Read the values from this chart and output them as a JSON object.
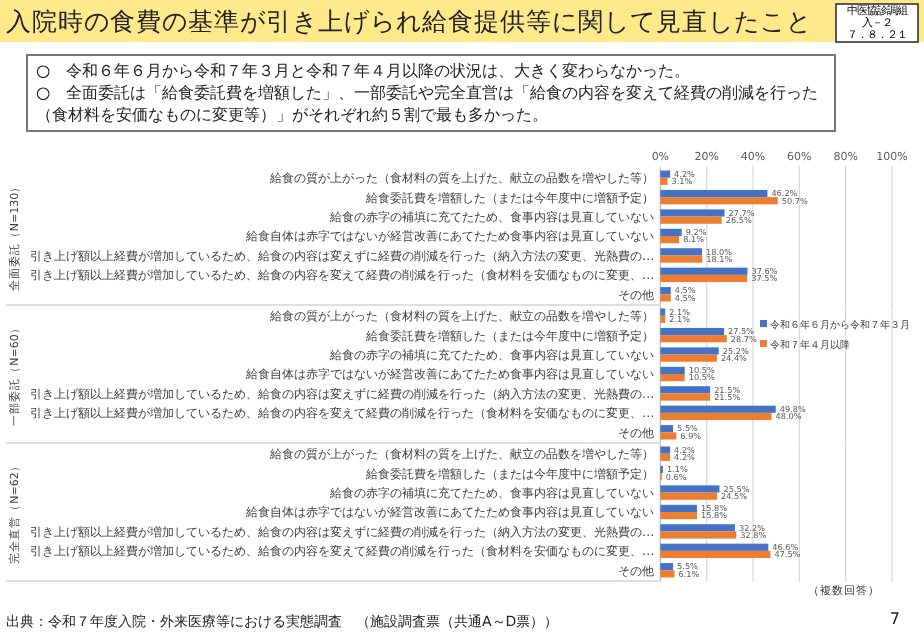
{
  "chart_data": [
    {
      "type": "bar",
      "orientation": "horizontal",
      "title": "入院時の食費の基準が引き上げられ給食提供等に関して見直したこと",
      "subtitle": "○　令和６年６月から令和７年３月と令和７年４月以降の状況は、大きく変わらなかった。\n○　全面委託は「給食委託費を増額した」、一部委託や完全直営は「給食の内容を変えて経費の削減を行った（食材料を安価なものに変更等）」がそれぞれ約５割で最も多かった。",
      "annotations": [
        "中医協診調組",
        "入－２",
        "７．８．２１"
      ],
      "ylabel": "全面委託（N=130）",
      "categories": [
        "給食の質が上がった（食材料の質を上げた、献立の品数を増やした等）",
        "給食委託費を増額した（または今年度中に増額予定）",
        "給食の赤字の補填に充てたため、食事内容は見直していない",
        "給食自体は赤字ではないが経営改善にあてたため食事内容は見直していない",
        "引き上げ額以上経費が増加しているため、給食の内容は変えずに経費の削減を行った（納入方法の変更、光熱費の…",
        "引き上げ額以上経費が増加しているため、給食の内容を変えて経費の削減を行った（食材料を安価なものに変更、…",
        "その他"
      ],
      "series": [
        {
          "color": "#4472c4",
          "values": [
            4.2,
            46.2,
            27.7,
            9.2,
            18.0,
            37.6,
            4.5
          ],
          "value_labels": [
            "4.2%",
            "46.2%",
            "27.7%",
            "9.2%",
            "18.0%",
            "37.6%",
            "4.5%"
          ]
        },
        {
          "color": "#ed7d31",
          "values": [
            3.1,
            50.7,
            26.5,
            8.1,
            18.1,
            37.5,
            4.5
          ],
          "value_labels": [
            "3.1%",
            "50.7%",
            "26.5%",
            "8.1%",
            "18.1%",
            "37.5%",
            "4.5%"
          ]
        }
      ],
      "xlim": [
        0,
        100
      ],
      "xticks": [
        {
          "value": 0,
          "label": "0%"
        },
        {
          "value": 20,
          "label": "20%"
        },
        {
          "value": 40,
          "label": "40%"
        },
        {
          "value": 60,
          "label": "60%"
        },
        {
          "value": 80,
          "label": "80%"
        },
        {
          "value": 100,
          "label": "100%"
        }
      ],
      "grid": "x"
    },
    {
      "type": "bar",
      "orientation": "horizontal",
      "ylabel": "一部委託（N=60）",
      "categories": [
        "給食の質が上がった（食材料の質を上げた、献立の品数を増やした等）",
        "給食委託費を増額した（または今年度中に増額予定）",
        "給食の赤字の補填に充てたため、食事内容は見直していない",
        "給食自体は赤字ではないが経営改善にあてたため食事内容は見直していない",
        "引き上げ額以上経費が増加しているため、給食の内容は変えずに経費の削減を行った（納入方法の変更、光熱費の…",
        "引き上げ額以上経費が増加しているため、給食の内容を変えて経費の削減を行った（食材料を安価なものに変更、…",
        "その他"
      ],
      "series": [
        {
          "name": "令和６年６月から令和７年３月",
          "color": "#4472c4",
          "values": [
            2.1,
            27.5,
            25.2,
            10.5,
            21.5,
            49.8,
            5.5
          ],
          "value_labels": [
            "2.1%",
            "27.5%",
            "25.2%",
            "10.5%",
            "21.5%",
            "49.8%",
            "5.5%"
          ]
        },
        {
          "name": "令和７年４月以降",
          "color": "#ed7d31",
          "values": [
            2.1,
            28.7,
            24.4,
            10.5,
            21.5,
            48.0,
            6.9
          ],
          "value_labels": [
            "2.1%",
            "28.7%",
            "24.4%",
            "10.5%",
            "21.5%",
            "48.0%",
            "6.9%"
          ]
        }
      ],
      "xlim": [
        0,
        100
      ],
      "xticks": [
        {
          "value": 0,
          "label": null
        },
        {
          "value": 20,
          "label": null
        },
        {
          "value": 40,
          "label": null
        },
        {
          "value": 60,
          "label": null
        },
        {
          "value": 80,
          "label": null
        },
        {
          "value": 100,
          "label": null
        }
      ],
      "tick_labels": "y",
      "grid": "x",
      "legend": "right"
    },
    {
      "type": "bar",
      "orientation": "horizontal",
      "ylabel": "完全直営（N=62）",
      "annotations": [
        "（複数回答）",
        "出典：令和７年度入院・外来医療等における実態調査　（施設調査票（共通A～D票））",
        "7"
      ],
      "categories": [
        "給食の質が上がった（食材料の質を上げた、献立の品数を増やした等）",
        "給食委託費を増額した（または今年度中に増額予定）",
        "給食の赤字の補填に充てたため、食事内容は見直していない",
        "給食自体は赤字ではないが経営改善にあてたため食事内容は見直していない",
        "引き上げ額以上経費が増加しているため、給食の内容は変えずに経費の削減を行った（納入方法の変更、光熱費の…",
        "引き上げ額以上経費が増加しているため、給食の内容を変えて経費の削減を行った（食材料を安価なものに変更、…",
        "その他"
      ],
      "series": [
        {
          "color": "#4472c4",
          "values": [
            4.2,
            1.1,
            25.5,
            15.8,
            32.2,
            46.6,
            5.5
          ],
          "value_labels": [
            "4.2%",
            "1.1%",
            "25.5%",
            "15.8%",
            "32.2%",
            "46.6%",
            "5.5%"
          ]
        },
        {
          "color": "#ed7d31",
          "values": [
            4.2,
            0.6,
            24.5,
            15.8,
            32.8,
            47.5,
            6.1
          ],
          "value_labels": [
            "4.2%",
            "0.6%",
            "24.5%",
            "15.8%",
            "32.8%",
            "47.5%",
            "6.1%"
          ]
        }
      ],
      "xlim": [
        0,
        100
      ],
      "xticks": [
        {
          "value": 0,
          "label": null
        },
        {
          "value": 20,
          "label": null
        },
        {
          "value": 40,
          "label": null
        },
        {
          "value": 60,
          "label": null
        },
        {
          "value": 80,
          "label": null
        },
        {
          "value": 100,
          "label": null
        }
      ],
      "tick_labels": "y",
      "grid": "x"
    }
  ]
}
